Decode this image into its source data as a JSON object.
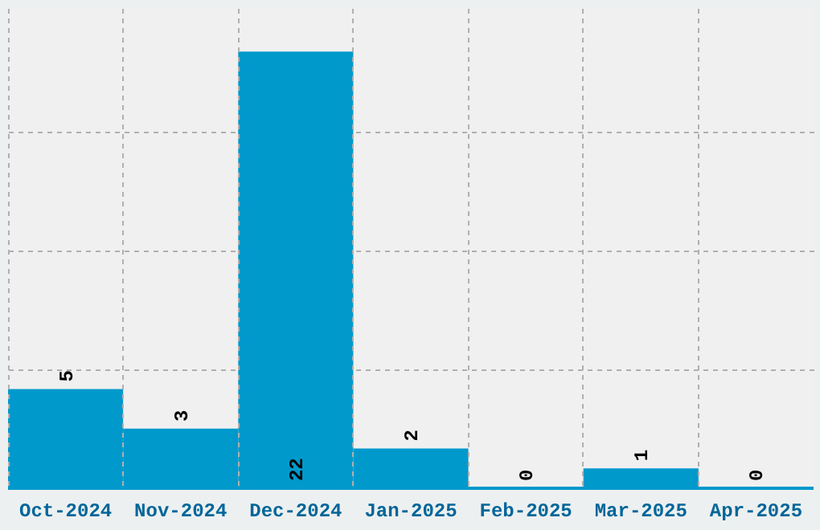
{
  "chart_data": {
    "type": "bar",
    "categories": [
      "Oct-2024",
      "Nov-2024",
      "Dec-2024",
      "Jan-2025",
      "Feb-2025",
      "Mar-2025",
      "Apr-2025"
    ],
    "values": [
      5,
      3,
      22,
      2,
      0,
      1,
      0
    ],
    "color": "#0099cc",
    "ylim": [
      0,
      24.2
    ],
    "yticks": [
      {
        "value": 6,
        "label": null
      },
      {
        "value": 12,
        "label": null
      },
      {
        "value": 18,
        "label": null
      }
    ],
    "tick_labels": "x",
    "grid": true,
    "data_labels": true
  }
}
